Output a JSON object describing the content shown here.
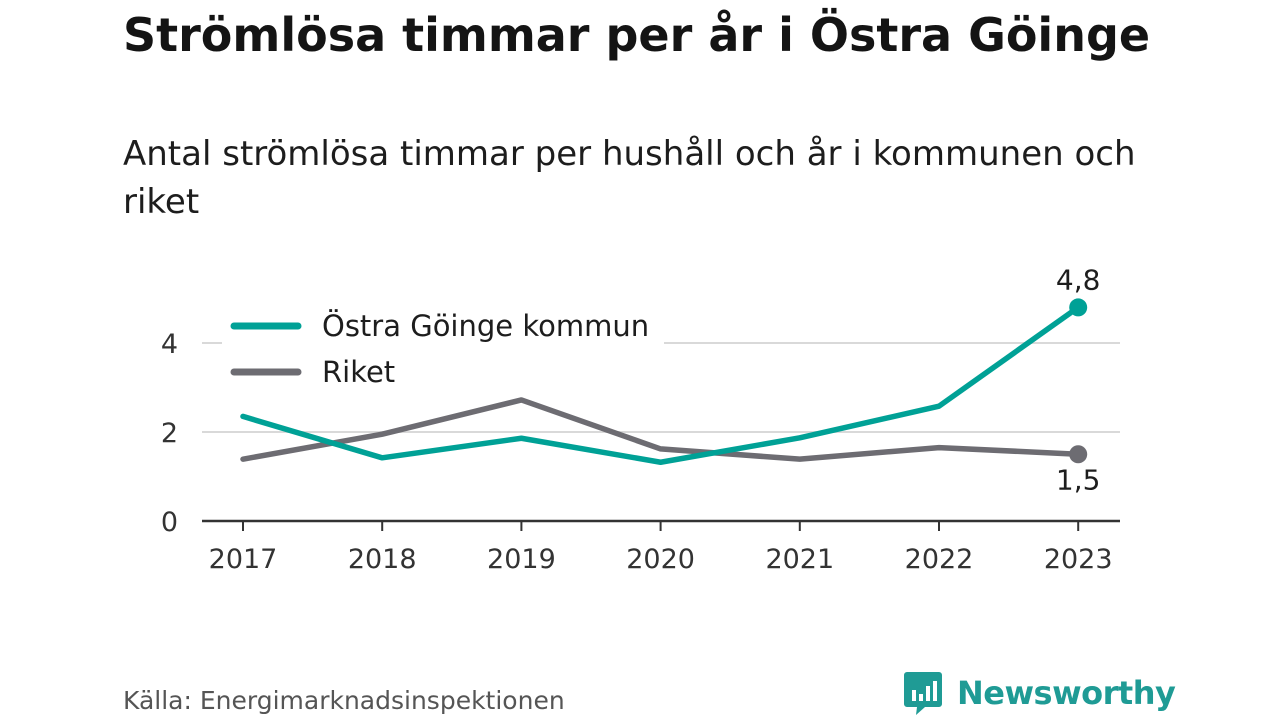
{
  "header": {
    "title": "Strömlösa timmar per år i Östra Göinge",
    "subtitle": "Antal strömlösa timmar per hushåll och år i kommunen och riket"
  },
  "footer": {
    "source": "Källa: Energimarknadsinspektionen",
    "brand": "Newsworthy",
    "brand_icon": "bar-chart-speech-bubble-icon"
  },
  "colors": {
    "accent": "#00a196",
    "national": "#6d6c72",
    "grid": "#d9d9d9",
    "axis": "#333333",
    "brand": "#1f9b95"
  },
  "chart_data": {
    "type": "line",
    "title": "Strömlösa timmar per år i Östra Göinge",
    "subtitle": "Antal strömlösa timmar per hushåll och år i kommunen och riket",
    "x": [
      "2017",
      "2018",
      "2019",
      "2020",
      "2021",
      "2022",
      "2023"
    ],
    "yticks": [
      0,
      2,
      4
    ],
    "ylim": [
      0,
      5
    ],
    "grid": true,
    "legend_position": "top-left",
    "series": [
      {
        "name": "Östra Göinge kommun",
        "color": "#00a196",
        "values": [
          2.35,
          1.42,
          1.86,
          1.32,
          1.87,
          2.58,
          4.8
        ],
        "end_label": "4,8"
      },
      {
        "name": "Riket",
        "color": "#6d6c72",
        "values": [
          1.39,
          1.95,
          2.72,
          1.62,
          1.39,
          1.65,
          1.5
        ],
        "end_label": "1,5"
      }
    ]
  }
}
